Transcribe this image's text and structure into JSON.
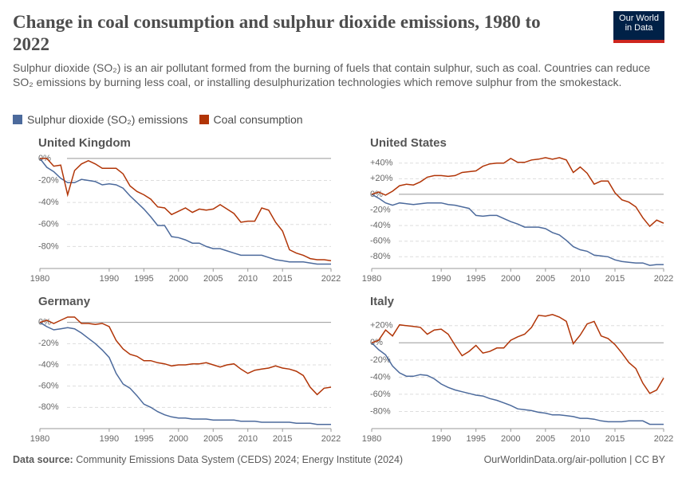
{
  "title": "Change in coal consumption and sulphur dioxide emissions, 1980 to 2022",
  "subtitle": "Sulphur dioxide (SO₂) is an air pollutant formed from the burning of fuels that contain sulphur, such as coal. Countries can reduce SO₂ emissions by burning less coal, or installing desulphurization technologies which remove sulphur from the smokestack.",
  "logo": [
    "Our World",
    "in Data"
  ],
  "source_label": "Data source:",
  "source": "Community Emissions Data System (CEDS) 2024; Energy Institute (2024)",
  "credit": "OurWorldinData.org/air-pollution | CC BY",
  "chart_data": [
    {
      "type": "line",
      "title": "United Kingdom",
      "x": [
        1980,
        1981,
        1982,
        1983,
        1984,
        1985,
        1986,
        1987,
        1988,
        1989,
        1990,
        1991,
        1992,
        1993,
        1994,
        1995,
        1996,
        1997,
        1998,
        1999,
        2000,
        2001,
        2002,
        2003,
        2004,
        2005,
        2006,
        2007,
        2008,
        2009,
        2010,
        2011,
        2012,
        2013,
        2014,
        2015,
        2016,
        2017,
        2018,
        2019,
        2020,
        2021,
        2022
      ],
      "xlim": [
        1980,
        2022
      ],
      "xticks": [
        1980,
        1990,
        1995,
        2000,
        2005,
        2010,
        2015,
        2022
      ],
      "ylim": [
        -100,
        5
      ],
      "yticks": [
        {
          "value": 0,
          "label": "0%"
        },
        {
          "value": -20,
          "label": "-20%"
        },
        {
          "value": -40,
          "label": "-40%"
        },
        {
          "value": -60,
          "label": "-60%"
        },
        {
          "value": -80,
          "label": "-80%"
        }
      ],
      "series": [
        {
          "name": "Sulphur dioxide (SO₂) emissions",
          "color": "#4c6a9c",
          "values": [
            0,
            -8,
            -12,
            -18,
            -22,
            -22,
            -19,
            -20,
            -21,
            -24,
            -23,
            -24,
            -27,
            -34,
            -40,
            -46,
            -53,
            -61,
            -61,
            -71,
            -72,
            -74,
            -77,
            -77,
            -80,
            -82,
            -82,
            -84,
            -86,
            -88,
            -88,
            -88,
            -88,
            -90,
            -92,
            -93,
            -94,
            -94,
            -94,
            -95,
            -96,
            -96,
            -96
          ]
        },
        {
          "name": "Coal consumption",
          "color": "#b13507",
          "values": [
            0,
            0,
            -7,
            -6,
            -33,
            -11,
            -5,
            -2,
            -5,
            -9,
            -9,
            -9,
            -14,
            -25,
            -30,
            -33,
            -37,
            -44,
            -45,
            -51,
            -48,
            -45,
            -49,
            -46,
            -47,
            -46,
            -42,
            -46,
            -50,
            -58,
            -57,
            -57,
            -45,
            -47,
            -58,
            -66,
            -83,
            -86,
            -88,
            -91,
            -92,
            -92,
            -93
          ]
        }
      ]
    },
    {
      "type": "line",
      "title": "United States",
      "x": [
        1980,
        1981,
        1982,
        1983,
        1984,
        1985,
        1986,
        1987,
        1988,
        1989,
        1990,
        1991,
        1992,
        1993,
        1994,
        1995,
        1996,
        1997,
        1998,
        1999,
        2000,
        2001,
        2002,
        2003,
        2004,
        2005,
        2006,
        2007,
        2008,
        2009,
        2010,
        2011,
        2012,
        2013,
        2014,
        2015,
        2016,
        2017,
        2018,
        2019,
        2020,
        2021,
        2022
      ],
      "xlim": [
        1980,
        2022
      ],
      "xticks": [
        1980,
        1990,
        1995,
        2000,
        2005,
        2010,
        2015,
        2022
      ],
      "ylim": [
        -95,
        53
      ],
      "yticks": [
        {
          "value": 40,
          "label": "+40%"
        },
        {
          "value": 20,
          "label": "+20%"
        },
        {
          "value": 0,
          "label": "0%"
        },
        {
          "value": -20,
          "label": "-20%"
        },
        {
          "value": -40,
          "label": "-40%"
        },
        {
          "value": -60,
          "label": "-60%"
        },
        {
          "value": -80,
          "label": "-80%"
        }
      ],
      "series": [
        {
          "name": "Sulphur dioxide (SO₂) emissions",
          "color": "#4c6a9c",
          "values": [
            0,
            -5,
            -11,
            -14,
            -11,
            -12,
            -13,
            -12,
            -11,
            -11,
            -11,
            -13,
            -14,
            -16,
            -18,
            -27,
            -28,
            -27,
            -27,
            -31,
            -35,
            -38,
            -42,
            -42,
            -42,
            -44,
            -49,
            -52,
            -59,
            -67,
            -71,
            -73,
            -78,
            -79,
            -80,
            -84,
            -86,
            -87,
            -88,
            -88,
            -91,
            -90,
            -90
          ]
        },
        {
          "name": "Coal consumption",
          "color": "#b13507",
          "values": [
            0,
            3,
            -1,
            4,
            11,
            13,
            12,
            16,
            22,
            24,
            24,
            23,
            24,
            28,
            29,
            30,
            36,
            39,
            40,
            40,
            46,
            41,
            41,
            44,
            45,
            47,
            45,
            47,
            44,
            28,
            35,
            27,
            13,
            17,
            17,
            2,
            -7,
            -10,
            -16,
            -30,
            -41,
            -33,
            -37
          ]
        }
      ]
    },
    {
      "type": "line",
      "title": "Germany",
      "x": [
        1980,
        1981,
        1982,
        1983,
        1984,
        1985,
        1986,
        1987,
        1988,
        1989,
        1990,
        1991,
        1992,
        1993,
        1994,
        1995,
        1996,
        1997,
        1998,
        1999,
        2000,
        2001,
        2002,
        2003,
        2004,
        2005,
        2006,
        2007,
        2008,
        2009,
        2010,
        2011,
        2012,
        2013,
        2014,
        2015,
        2016,
        2017,
        2018,
        2019,
        2020,
        2021,
        2022
      ],
      "xlim": [
        1980,
        2022
      ],
      "xticks": [
        1980,
        1990,
        1995,
        2000,
        2005,
        2010,
        2015,
        2022
      ],
      "ylim": [
        -100,
        5
      ],
      "yticks": [
        {
          "value": 0,
          "label": "0%"
        },
        {
          "value": -20,
          "label": "-20%"
        },
        {
          "value": -40,
          "label": "-40%"
        },
        {
          "value": -60,
          "label": "-60%"
        },
        {
          "value": -80,
          "label": "-80%"
        }
      ],
      "series": [
        {
          "name": "Sulphur dioxide (SO₂) emissions",
          "color": "#4c6a9c",
          "values": [
            0,
            -4,
            -7,
            -6,
            -5,
            -6,
            -10,
            -15,
            -20,
            -26,
            -33,
            -48,
            -58,
            -62,
            -69,
            -77,
            -80,
            -84,
            -87,
            -89,
            -90,
            -90,
            -91,
            -91,
            -91,
            -92,
            -92,
            -92,
            -92,
            -93,
            -93,
            -93,
            -94,
            -94,
            -94,
            -94,
            -94,
            -95,
            -95,
            -95,
            -96,
            -96,
            -96
          ]
        },
        {
          "name": "Coal consumption",
          "color": "#b13507",
          "values": [
            0,
            2,
            -1,
            2,
            5,
            5,
            -1,
            -1,
            -2,
            -1,
            -4,
            -17,
            -25,
            -30,
            -32,
            -36,
            -36,
            -38,
            -39,
            -41,
            -40,
            -40,
            -39,
            -39,
            -38,
            -40,
            -42,
            -40,
            -39,
            -44,
            -48,
            -45,
            -44,
            -43,
            -41,
            -43,
            -44,
            -46,
            -50,
            -61,
            -68,
            -62,
            -61
          ]
        }
      ]
    },
    {
      "type": "line",
      "title": "Italy",
      "x": [
        1980,
        1981,
        1982,
        1983,
        1984,
        1985,
        1986,
        1987,
        1988,
        1989,
        1990,
        1991,
        1992,
        1993,
        1994,
        1995,
        1996,
        1997,
        1998,
        1999,
        2000,
        2001,
        2002,
        2003,
        2004,
        2005,
        2006,
        2007,
        2008,
        2009,
        2010,
        2011,
        2012,
        2013,
        2014,
        2015,
        2016,
        2017,
        2018,
        2019,
        2020,
        2021,
        2022
      ],
      "xlim": [
        1980,
        2022
      ],
      "xticks": [
        1980,
        1990,
        1995,
        2000,
        2005,
        2010,
        2015,
        2022
      ],
      "ylim": [
        -100,
        30
      ],
      "yticks": [
        {
          "value": 20,
          "label": "+20%"
        },
        {
          "value": 0,
          "label": "0%"
        },
        {
          "value": -20,
          "label": "-20%"
        },
        {
          "value": -40,
          "label": "-40%"
        },
        {
          "value": -60,
          "label": "-60%"
        },
        {
          "value": -80,
          "label": "-80%"
        }
      ],
      "series": [
        {
          "name": "Sulphur dioxide (SO₂) emissions",
          "color": "#4c6a9c",
          "values": [
            0,
            -8,
            -14,
            -27,
            -35,
            -39,
            -39,
            -37,
            -38,
            -42,
            -48,
            -52,
            -55,
            -57,
            -59,
            -61,
            -62,
            -65,
            -67,
            -70,
            -73,
            -77,
            -78,
            -79,
            -81,
            -82,
            -84,
            -84,
            -85,
            -86,
            -88,
            -88,
            -89,
            -91,
            -92,
            -92,
            -92,
            -91,
            -91,
            -91,
            -95,
            -95,
            -95
          ]
        },
        {
          "name": "Coal consumption",
          "color": "#b13507",
          "values": [
            0,
            3,
            15,
            8,
            21,
            20,
            19,
            18,
            10,
            15,
            16,
            10,
            -3,
            -15,
            -10,
            -3,
            -12,
            -10,
            -6,
            -6,
            3,
            7,
            10,
            18,
            32,
            31,
            33,
            30,
            25,
            -1,
            9,
            22,
            25,
            8,
            5,
            -2,
            -12,
            -23,
            -30,
            -47,
            -59,
            -55,
            -41
          ]
        }
      ]
    }
  ]
}
